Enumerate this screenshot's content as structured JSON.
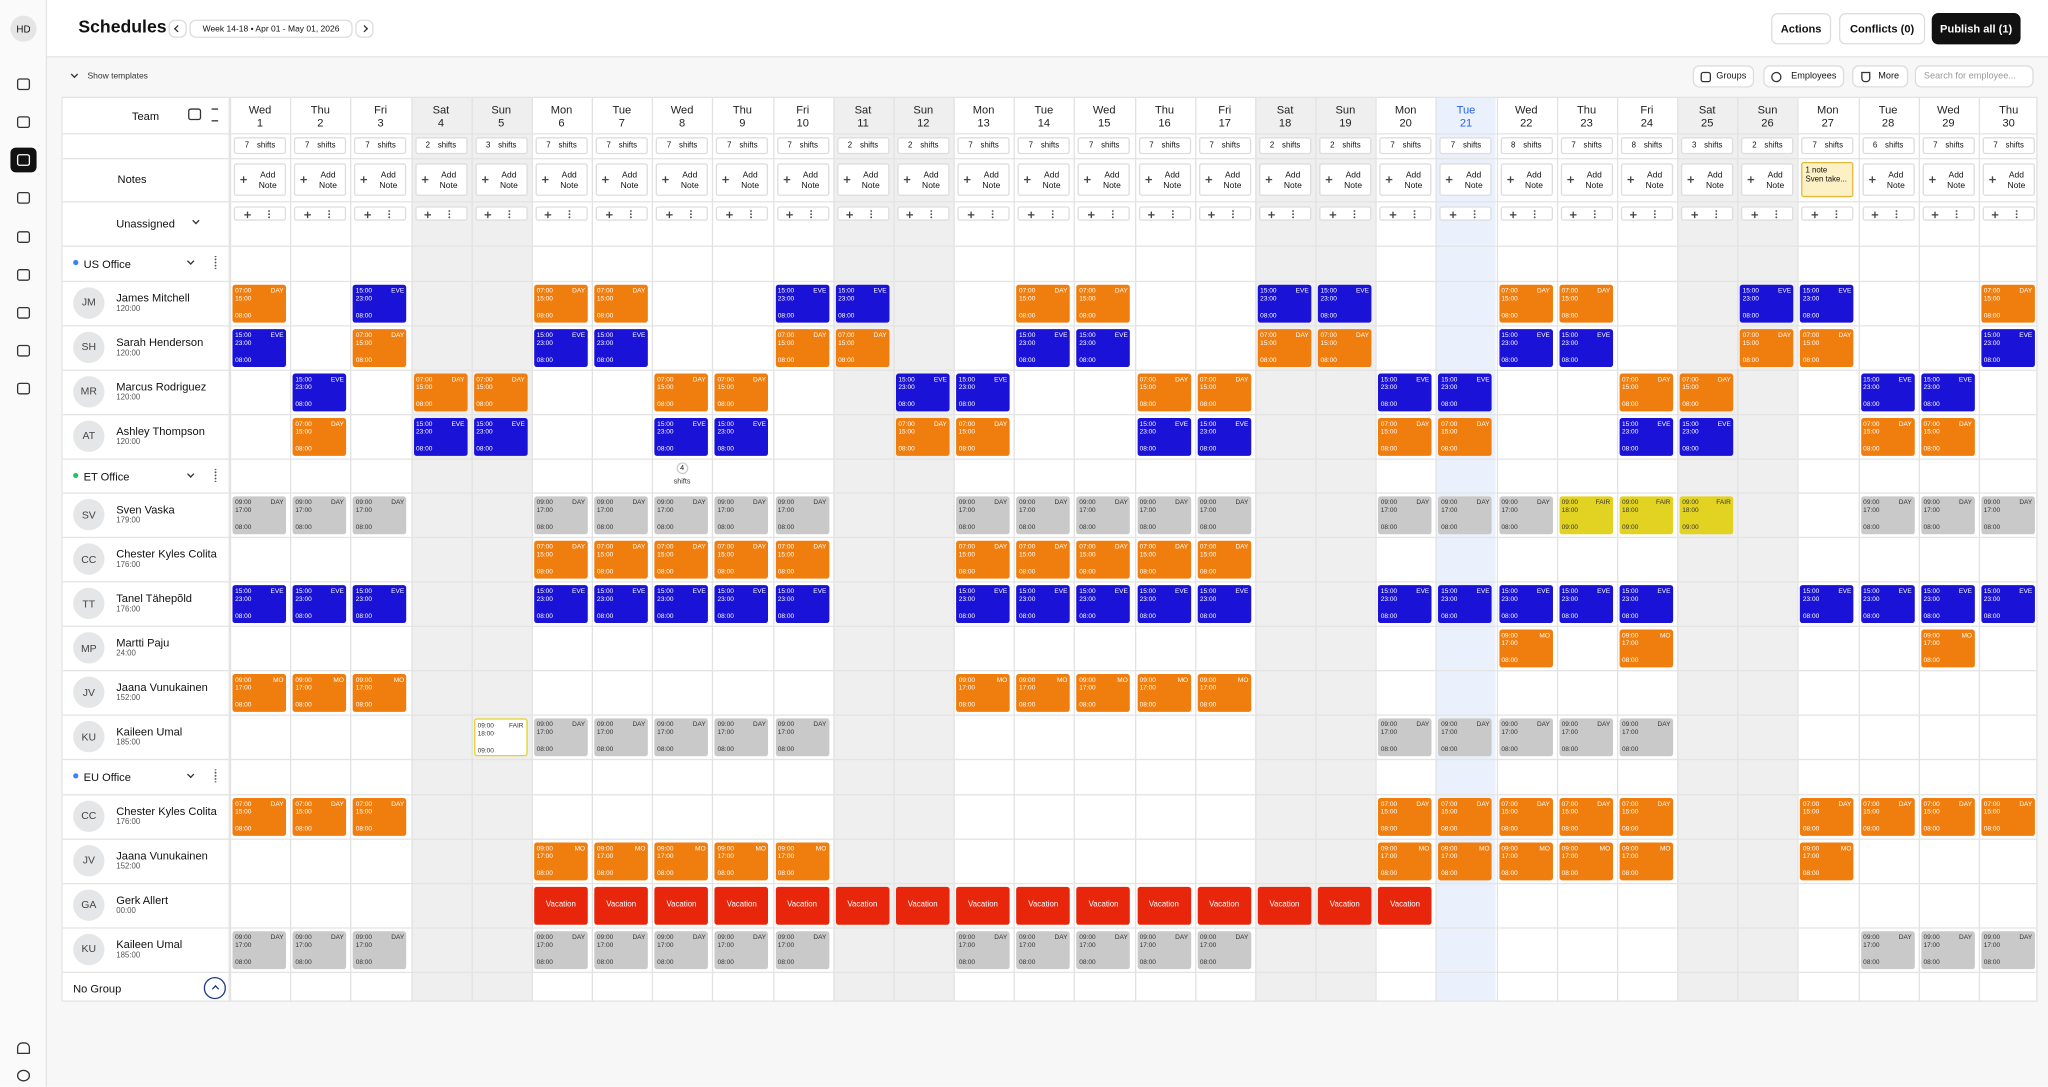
{
  "header": {
    "avatar": "HD",
    "title": "Schedules",
    "week": "Week 14-18 • Apr 01 - May 01, 2026",
    "actions": "Actions",
    "conflicts": "Conflicts (0)",
    "publish": "Publish all (1)"
  },
  "toolbar": {
    "show_templates": "Show templates",
    "groups": "Groups",
    "employees": "Employees",
    "more": "More",
    "search_placeholder": "Search for employee..."
  },
  "table": {
    "team_label": "Team",
    "notes_label": "Notes",
    "add_note": "Add Note",
    "unassigned_label": "Unassigned",
    "shifts_unit": "shifts",
    "no_group_label": "No Group",
    "days": [
      {
        "weekday": "Wed",
        "day": 1,
        "shifts": 7
      },
      {
        "weekday": "Thu",
        "day": 2,
        "shifts": 7
      },
      {
        "weekday": "Fri",
        "day": 3,
        "shifts": 7
      },
      {
        "weekday": "Sat",
        "day": 4,
        "shifts": 2,
        "weekend": true
      },
      {
        "weekday": "Sun",
        "day": 5,
        "shifts": 3,
        "weekend": true
      },
      {
        "weekday": "Mon",
        "day": 6,
        "shifts": 7
      },
      {
        "weekday": "Tue",
        "day": 7,
        "shifts": 7
      },
      {
        "weekday": "Wed",
        "day": 8,
        "shifts": 7
      },
      {
        "weekday": "Thu",
        "day": 9,
        "shifts": 7
      },
      {
        "weekday": "Fri",
        "day": 10,
        "shifts": 7
      },
      {
        "weekday": "Sat",
        "day": 11,
        "shifts": 2,
        "weekend": true
      },
      {
        "weekday": "Sun",
        "day": 12,
        "shifts": 2,
        "weekend": true
      },
      {
        "weekday": "Mon",
        "day": 13,
        "shifts": 7
      },
      {
        "weekday": "Tue",
        "day": 14,
        "shifts": 7
      },
      {
        "weekday": "Wed",
        "day": 15,
        "shifts": 7
      },
      {
        "weekday": "Thu",
        "day": 16,
        "shifts": 7
      },
      {
        "weekday": "Fri",
        "day": 17,
        "shifts": 7
      },
      {
        "weekday": "Sat",
        "day": 18,
        "shifts": 2,
        "weekend": true
      },
      {
        "weekday": "Sun",
        "day": 19,
        "shifts": 2,
        "weekend": true
      },
      {
        "weekday": "Mon",
        "day": 20,
        "shifts": 7
      },
      {
        "weekday": "Tue",
        "day": 21,
        "shifts": 7,
        "today": true
      },
      {
        "weekday": "Wed",
        "day": 22,
        "shifts": 8
      },
      {
        "weekday": "Thu",
        "day": 23,
        "shifts": 7
      },
      {
        "weekday": "Fri",
        "day": 24,
        "shifts": 8
      },
      {
        "weekday": "Sat",
        "day": 25,
        "shifts": 3,
        "weekend": true
      },
      {
        "weekday": "Sun",
        "day": 26,
        "shifts": 2,
        "weekend": true
      },
      {
        "weekday": "Mon",
        "day": 27,
        "shifts": 7,
        "note": {
          "count": "1 note",
          "preview": "Sven take..."
        }
      },
      {
        "weekday": "Tue",
        "day": 28,
        "shifts": 6
      },
      {
        "weekday": "Wed",
        "day": 29,
        "shifts": 7
      },
      {
        "weekday": "Thu",
        "day": 30,
        "shifts": 7
      }
    ],
    "groups": [
      {
        "name": "US Office",
        "color": "#3b82f6",
        "rows": [
          {
            "initials": "JM",
            "name": "James Mitchell",
            "hours": "120:00",
            "shifts": {
              "DAY": {
                "start": "07:00",
                "end": "15:00",
                "hours": "08:00",
                "color": "#f07e0e"
              },
              "EVE": {
                "start": "15:00",
                "end": "23:00",
                "hours": "08:00",
                "color": "#1b12d8"
              }
            },
            "cells": [
              "DAY",
              null,
              "EVE",
              null,
              null,
              "DAY",
              "DAY",
              null,
              null,
              "EVE",
              "EVE",
              null,
              null,
              "DAY",
              "DAY",
              null,
              null,
              "EVE",
              "EVE",
              null,
              null,
              "DAY",
              "DAY",
              null,
              null,
              "EVE",
              "EVE",
              null,
              null,
              "DAY"
            ]
          },
          {
            "initials": "SH",
            "name": "Sarah Henderson",
            "hours": "120:00",
            "shifts": {
              "DAY": {
                "start": "07:00",
                "end": "15:00",
                "hours": "08:00",
                "color": "#f07e0e"
              },
              "EVE": {
                "start": "15:00",
                "end": "23:00",
                "hours": "08:00",
                "color": "#1b12d8"
              }
            },
            "cells": [
              "EVE",
              null,
              "DAY",
              null,
              null,
              "EVE",
              "EVE",
              null,
              null,
              "DAY",
              "DAY",
              null,
              null,
              "EVE",
              "EVE",
              null,
              null,
              "DAY",
              "DAY",
              null,
              null,
              "EVE",
              "EVE",
              null,
              null,
              "DAY",
              "DAY",
              null,
              null,
              "EVE"
            ]
          },
          {
            "initials": "MR",
            "name": "Marcus Rodriguez",
            "hours": "120:00",
            "shifts": {
              "DAY": {
                "start": "07:00",
                "end": "15:00",
                "hours": "08:00",
                "color": "#f07e0e"
              },
              "EVE": {
                "start": "15:00",
                "end": "23:00",
                "hours": "08:00",
                "color": "#1b12d8"
              }
            },
            "cells": [
              null,
              "EVE",
              null,
              "DAY",
              "DAY",
              null,
              null,
              "DAY",
              "DAY",
              null,
              null,
              "EVE",
              "EVE",
              null,
              null,
              "DAY",
              "DAY",
              null,
              null,
              "EVE",
              "EVE",
              null,
              null,
              "DAY",
              "DAY",
              null,
              null,
              "EVE",
              "EVE",
              null
            ]
          },
          {
            "initials": "AT",
            "name": "Ashley Thompson",
            "hours": "120:00",
            "shifts": {
              "DAY": {
                "start": "07:00",
                "end": "15:00",
                "hours": "08:00",
                "color": "#f07e0e"
              },
              "EVE": {
                "start": "15:00",
                "end": "23:00",
                "hours": "08:00",
                "color": "#1b12d8"
              }
            },
            "cells": [
              null,
              "DAY",
              null,
              "EVE",
              "EVE",
              null,
              null,
              "EVE",
              "EVE",
              null,
              null,
              "DAY",
              "DAY",
              null,
              null,
              "EVE",
              "EVE",
              null,
              null,
              "DAY",
              "DAY",
              null,
              null,
              "EVE",
              "EVE",
              null,
              null,
              "DAY",
              "DAY",
              null
            ]
          }
        ]
      },
      {
        "name": "ET Office",
        "color": "#22c55e",
        "header_cells": [
          null,
          null,
          null,
          null,
          null,
          null,
          null,
          4,
          null,
          null,
          null,
          null,
          null,
          null,
          null,
          null,
          null,
          null,
          null,
          null,
          null,
          null,
          null,
          null,
          null,
          null,
          null,
          null,
          null,
          null
        ],
        "rows": [
          {
            "initials": "SV",
            "name": "Sven Vaska",
            "hours": "179:00",
            "shifts": {
              "DAY": {
                "start": "09:00",
                "end": "17:00",
                "hours": "08:00",
                "color": "#c9c9c9"
              },
              "FAIR": {
                "start": "09:00",
                "end": "18:00",
                "hours": "09:00",
                "color": "#e2d323"
              }
            },
            "cells": [
              "DAY",
              "DAY",
              "DAY",
              null,
              null,
              "DAY",
              "DAY",
              "DAY",
              "DAY",
              "DAY",
              null,
              null,
              "DAY",
              "DAY",
              "DAY",
              "DAY",
              "DAY",
              null,
              null,
              "DAY",
              "DAY",
              "DAY",
              "FAIR",
              "FAIR",
              "FAIR",
              null,
              null,
              "DAY",
              "DAY",
              "DAY"
            ]
          },
          {
            "initials": "CC",
            "name": "Chester Kyles Colita",
            "hours": "176:00",
            "shifts": {
              "DAY": {
                "start": "07:00",
                "end": "15:00",
                "hours": "08:00",
                "color": "#f07e0e"
              }
            },
            "cells": [
              null,
              null,
              null,
              null,
              null,
              "DAY",
              "DAY",
              "DAY",
              "DAY",
              "DAY",
              null,
              null,
              "DAY",
              "DAY",
              "DAY",
              "DAY",
              "DAY",
              null,
              null,
              null,
              null,
              null,
              null,
              null,
              null,
              null,
              null,
              null,
              null,
              null
            ]
          },
          {
            "initials": "TT",
            "name": "Tanel Tähepõld",
            "hours": "176:00",
            "shifts": {
              "EVE": {
                "start": "15:00",
                "end": "23:00",
                "hours": "08:00",
                "color": "#1b12d8"
              }
            },
            "cells": [
              "EVE",
              "EVE",
              "EVE",
              null,
              null,
              "EVE",
              "EVE",
              "EVE",
              "EVE",
              "EVE",
              null,
              null,
              "EVE",
              "EVE",
              "EVE",
              "EVE",
              "EVE",
              null,
              null,
              "EVE",
              "EVE",
              "EVE",
              "EVE",
              "EVE",
              null,
              null,
              "EVE",
              "EVE",
              "EVE",
              "EVE"
            ]
          },
          {
            "initials": "MP",
            "name": "Martti Paju",
            "hours": "24:00",
            "shifts": {
              "MO": {
                "start": "09:00",
                "end": "17:00",
                "hours": "08:00",
                "color": "#f07e0e"
              }
            },
            "cells": [
              null,
              null,
              null,
              null,
              null,
              null,
              null,
              null,
              null,
              null,
              null,
              null,
              null,
              null,
              null,
              null,
              null,
              null,
              null,
              null,
              null,
              "MO",
              null,
              "MO",
              null,
              null,
              null,
              null,
              "MO",
              null
            ]
          },
          {
            "initials": "JV",
            "name": "Jaana Vunukainen",
            "hours": "152:00",
            "shifts": {
              "MO": {
                "start": "09:00",
                "end": "17:00",
                "hours": "08:00",
                "color": "#f07e0e"
              }
            },
            "cells": [
              "MO",
              "MO",
              "MO",
              null,
              null,
              null,
              null,
              null,
              null,
              null,
              null,
              null,
              "MO",
              "MO",
              "MO",
              "MO",
              "MO",
              null,
              null,
              null,
              null,
              null,
              null,
              null,
              null,
              null,
              null,
              null,
              null,
              null
            ]
          },
          {
            "initials": "KU",
            "name": "Kaileen Umal",
            "hours": "185:00",
            "shifts": {
              "FAIR": {
                "start": "09:00",
                "end": "18:00",
                "hours": "09:00",
                "color": "#ffffff",
                "border": "#e2d323"
              },
              "DAY": {
                "start": "09:00",
                "end": "17:00",
                "hours": "08:00",
                "color": "#c9c9c9"
              }
            },
            "cells": [
              null,
              null,
              null,
              null,
              "FAIR",
              "DAY",
              "DAY",
              "DAY",
              "DAY",
              "DAY",
              null,
              null,
              null,
              null,
              null,
              null,
              null,
              null,
              null,
              "DAY",
              "DAY",
              "DAY",
              "DAY",
              "DAY",
              null,
              null,
              null,
              null,
              null,
              null
            ]
          }
        ]
      },
      {
        "name": "EU Office",
        "color": "#3b82f6",
        "rows": [
          {
            "initials": "CC",
            "name": "Chester Kyles Colita",
            "hours": "176:00",
            "shifts": {
              "DAY": {
                "start": "07:00",
                "end": "15:00",
                "hours": "08:00",
                "color": "#f07e0e"
              }
            },
            "cells": [
              "DAY",
              "DAY",
              "DAY",
              null,
              null,
              null,
              null,
              null,
              null,
              null,
              null,
              null,
              null,
              null,
              null,
              null,
              null,
              null,
              null,
              "DAY",
              "DAY",
              "DAY",
              "DAY",
              "DAY",
              null,
              null,
              "DAY",
              "DAY",
              "DAY",
              "DAY"
            ]
          },
          {
            "initials": "JV",
            "name": "Jaana Vunukainen",
            "hours": "152:00",
            "shifts": {
              "MO": {
                "start": "09:00",
                "end": "17:00",
                "hours": "08:00",
                "color": "#f07e0e"
              }
            },
            "cells": [
              null,
              null,
              null,
              null,
              null,
              "MO",
              "MO",
              "MO",
              "MO",
              "MO",
              null,
              null,
              null,
              null,
              null,
              null,
              null,
              null,
              null,
              "MO",
              "MO",
              "MO",
              "MO",
              "MO",
              null,
              null,
              "MO",
              null,
              null,
              null
            ]
          },
          {
            "initials": "GA",
            "name": "Gerk Allert",
            "hours": "00:00",
            "shifts": {
              "Vacation": {
                "color": "#e8260c"
              }
            },
            "cells": [
              null,
              null,
              null,
              null,
              null,
              "Vacation",
              "Vacation",
              "Vacation",
              "Vacation",
              "Vacation",
              "Vacation",
              "Vacation",
              "Vacation",
              "Vacation",
              "Vacation",
              "Vacation",
              "Vacation",
              "Vacation",
              "Vacation",
              "Vacation",
              null,
              null,
              null,
              null,
              null,
              null,
              null,
              null,
              null,
              null
            ]
          },
          {
            "initials": "KU",
            "name": "Kaileen Umal",
            "hours": "185:00",
            "shifts": {
              "DAY": {
                "start": "09:00",
                "end": "17:00",
                "hours": "08:00",
                "color": "#c9c9c9"
              }
            },
            "cells": [
              "DAY",
              "DAY",
              "DAY",
              null,
              null,
              "DAY",
              "DAY",
              "DAY",
              "DAY",
              "DAY",
              null,
              null,
              "DAY",
              "DAY",
              "DAY",
              "DAY",
              "DAY",
              null,
              null,
              null,
              null,
              null,
              null,
              null,
              null,
              null,
              null,
              "DAY",
              "DAY",
              "DAY"
            ]
          }
        ]
      }
    ]
  }
}
